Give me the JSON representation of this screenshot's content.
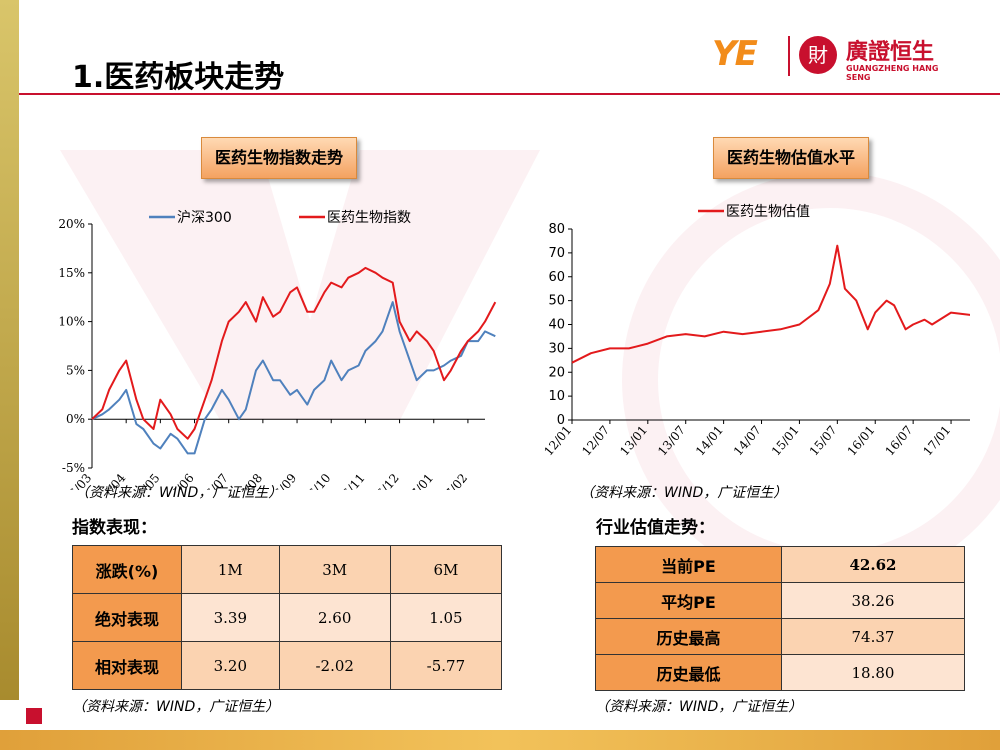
{
  "slide": {
    "title": "1.医药板块走势"
  },
  "logo": {
    "mark": "YE",
    "seal": "財",
    "name": "廣證恒生",
    "name_en": "GUANGZHENG HANG SENG"
  },
  "colors": {
    "red": "#e31a1c",
    "blue": "#4f81bd",
    "orange_header": "#f39a4e",
    "orange_cell": "#fbd3b1"
  },
  "chart_left": {
    "heading": "医药生物指数走势",
    "source": "（资料来源：WIND，广证恒生）",
    "chart_data": {
      "type": "line",
      "title": "",
      "ylim": [
        -5,
        20
      ],
      "y_ticks": [
        "-5%",
        "0%",
        "5%",
        "10%",
        "15%",
        "20%"
      ],
      "x_ticks": [
        "16/03",
        "16/04",
        "16/05",
        "16/06",
        "16/07",
        "16/08",
        "16/09",
        "16/10",
        "16/11",
        "16/12",
        "17/01",
        "17/02"
      ],
      "legend_position": "top",
      "series": [
        {
          "name": "沪深300",
          "color": "#4f81bd",
          "x": [
            0,
            0.3,
            0.5,
            0.8,
            1,
            1.3,
            1.5,
            1.8,
            2,
            2.3,
            2.5,
            2.8,
            3,
            3.3,
            3.5,
            3.8,
            4,
            4.3,
            4.5,
            4.8,
            5,
            5.3,
            5.5,
            5.8,
            6,
            6.3,
            6.5,
            6.8,
            7,
            7.3,
            7.5,
            7.8,
            8,
            8.3,
            8.5,
            8.8,
            9,
            9.3,
            9.5,
            9.8,
            10,
            10.3,
            10.5,
            10.8,
            11,
            11.3,
            11.5,
            11.8
          ],
          "values": [
            0,
            0.5,
            1,
            2,
            3,
            -0.5,
            -1,
            -2.5,
            -3,
            -1.5,
            -2,
            -3.5,
            -3.5,
            0,
            1,
            3,
            2,
            0,
            1,
            5,
            6,
            4,
            4,
            2.5,
            3,
            1.5,
            3,
            4,
            6,
            4,
            5,
            5.5,
            7,
            8,
            9,
            12,
            9,
            6,
            4,
            5,
            5,
            5.5,
            6,
            6.5,
            8,
            8,
            9,
            8.5
          ]
        },
        {
          "name": "医药生物指数",
          "color": "#e31a1c",
          "x": [
            0,
            0.3,
            0.5,
            0.8,
            1,
            1.3,
            1.5,
            1.8,
            2,
            2.3,
            2.5,
            2.8,
            3,
            3.3,
            3.5,
            3.8,
            4,
            4.3,
            4.5,
            4.8,
            5,
            5.3,
            5.5,
            5.8,
            6,
            6.3,
            6.5,
            6.8,
            7,
            7.3,
            7.5,
            7.8,
            8,
            8.3,
            8.5,
            8.8,
            9,
            9.3,
            9.5,
            9.8,
            10,
            10.3,
            10.5,
            10.8,
            11,
            11.3,
            11.5,
            11.8
          ],
          "values": [
            0,
            1,
            3,
            5,
            6,
            2,
            0,
            -1,
            2,
            0.5,
            -1,
            -2,
            -1,
            2,
            4,
            8,
            10,
            11,
            12,
            10,
            12.5,
            10.5,
            11,
            13,
            13.5,
            11,
            11,
            13,
            14,
            13.5,
            14.5,
            15,
            15.5,
            15,
            14.5,
            14,
            10,
            8,
            9,
            8,
            7,
            4,
            5,
            7,
            8,
            9,
            10,
            12
          ]
        }
      ]
    }
  },
  "chart_right": {
    "heading": "医药生物估值水平",
    "source": "（资料来源：WIND，广证恒生）",
    "chart_data": {
      "type": "line",
      "title": "",
      "ylim": [
        0,
        80
      ],
      "y_ticks": [
        "0",
        "10",
        "20",
        "30",
        "40",
        "50",
        "60",
        "70",
        "80"
      ],
      "x_ticks": [
        "12/01",
        "12/07",
        "13/01",
        "13/07",
        "14/01",
        "14/07",
        "15/01",
        "15/07",
        "16/01",
        "16/07",
        "17/01"
      ],
      "legend_position": "top",
      "series": [
        {
          "name": "医药生物估值",
          "color": "#e31a1c",
          "x": [
            0,
            0.5,
            1,
            1.5,
            2,
            2.5,
            3,
            3.5,
            4,
            4.5,
            5,
            5.5,
            6,
            6.5,
            6.8,
            7,
            7.2,
            7.5,
            7.8,
            8,
            8.3,
            8.5,
            8.8,
            9,
            9.3,
            9.5,
            10,
            10.5,
            11,
            11.3
          ],
          "values": [
            24,
            28,
            30,
            30,
            32,
            35,
            36,
            35,
            37,
            36,
            37,
            38,
            40,
            46,
            57,
            73,
            55,
            50,
            38,
            45,
            50,
            48,
            38,
            40,
            42,
            40,
            45,
            44,
            40,
            42
          ]
        }
      ]
    }
  },
  "performance": {
    "subheading": "指数表现：",
    "source": "（资料来源：WIND，广证恒生）",
    "header": [
      "涨跌(%)",
      "1M",
      "3M",
      "6M"
    ],
    "rows": [
      {
        "label": "绝对表现",
        "values": [
          "3.39",
          "2.60",
          "1.05"
        ]
      },
      {
        "label": "相对表现",
        "values": [
          "3.20",
          "-2.02",
          "-5.77"
        ]
      }
    ]
  },
  "valuation": {
    "subheading": "行业估值走势：",
    "source": "（资料来源：WIND，广证恒生）",
    "rows": [
      {
        "label": "当前PE",
        "value": "42.62"
      },
      {
        "label": "平均PE",
        "value": "38.26"
      },
      {
        "label": "历史最高",
        "value": "74.37"
      },
      {
        "label": "历史最低",
        "value": "18.80"
      }
    ]
  }
}
